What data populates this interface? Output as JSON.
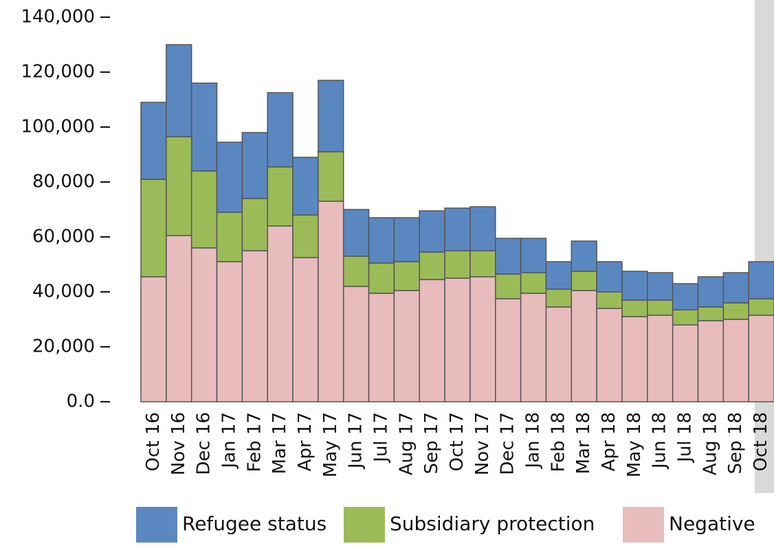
{
  "chart_data": {
    "type": "stacked_bar",
    "categories": [
      "Oct 16",
      "Nov 16",
      "Dec 16",
      "Jan 17",
      "Feb 17",
      "Mar 17",
      "Apr 17",
      "May 17",
      "Jun 17",
      "Jul 17",
      "Aug 17",
      "Sep 17",
      "Oct 17",
      "Nov 17",
      "Dec 17",
      "Jan 18",
      "Feb 18",
      "Mar 18",
      "Apr 18",
      "May 18",
      "Jun 18",
      "Jul 18",
      "Aug 18",
      "Sep 18",
      "Oct 18"
    ],
    "series": [
      {
        "name": "Negative",
        "color": "#e8bcbc",
        "values": [
          45500,
          60500,
          56000,
          51000,
          55000,
          64000,
          52500,
          73000,
          42000,
          39500,
          40500,
          44500,
          45000,
          45500,
          37500,
          39500,
          34500,
          40500,
          34000,
          31000,
          31500,
          28000,
          29500,
          30000,
          31500
        ]
      },
      {
        "name": "Subsidiary protection",
        "color": "#9bbb59",
        "values": [
          35500,
          36000,
          28000,
          18000,
          19000,
          21500,
          15500,
          18000,
          11000,
          11000,
          10500,
          10000,
          10000,
          9500,
          9000,
          7500,
          6500,
          7000,
          6000,
          6000,
          5500,
          5500,
          5000,
          6000,
          6000
        ]
      },
      {
        "name": "Refugee status",
        "color": "#5b87c0",
        "values": [
          28000,
          33500,
          32000,
          25500,
          24000,
          27000,
          21000,
          26000,
          17000,
          16500,
          16000,
          15000,
          15500,
          16000,
          13000,
          12500,
          10000,
          11000,
          11000,
          10500,
          10000,
          9500,
          11000,
          11000,
          13500
        ]
      }
    ],
    "legend_order": [
      "Refugee status",
      "Subsidiary protection",
      "Negative"
    ],
    "ylim": [
      0,
      140000
    ],
    "yticks": [
      {
        "value": 0,
        "label": "0.0"
      },
      {
        "value": 20000,
        "label": "20,000"
      },
      {
        "value": 40000,
        "label": "40,000"
      },
      {
        "value": 60000,
        "label": "60,000"
      },
      {
        "value": 80000,
        "label": "80,000"
      },
      {
        "value": 100000,
        "label": "100,000"
      },
      {
        "value": 120000,
        "label": "120,000"
      },
      {
        "value": 140000,
        "label": "140,000"
      }
    ]
  }
}
